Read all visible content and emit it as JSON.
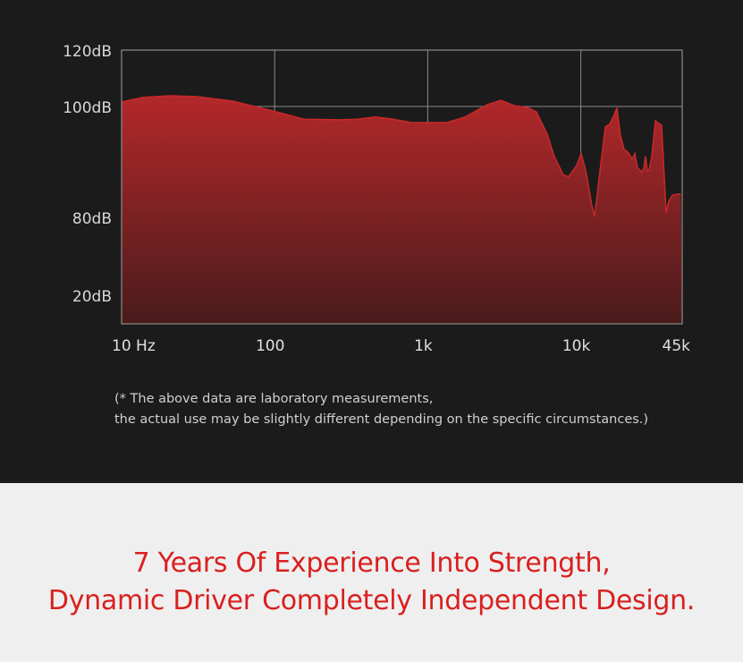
{
  "chart_data": {
    "type": "area",
    "xscale": "log",
    "x_ticks": [
      {
        "value": 10,
        "label": "10 Hz"
      },
      {
        "value": 100,
        "label": "100"
      },
      {
        "value": 1000,
        "label": "1k"
      },
      {
        "value": 10000,
        "label": "10k"
      },
      {
        "value": 45000,
        "label": "45k"
      }
    ],
    "y_ticks": [
      {
        "value": 120,
        "label": "120dB"
      },
      {
        "value": 100,
        "label": "100dB"
      },
      {
        "value": 80,
        "label": "80dB"
      },
      {
        "value": 20,
        "label": "20dB"
      }
    ],
    "xlim": [
      10,
      45000
    ],
    "ylim": [
      20,
      120
    ],
    "grid": true,
    "colors": {
      "fill_top": "#b3282a",
      "fill_bottom": "#4a1b1c",
      "line": "#c8292a",
      "grid": "#8a8a8a"
    },
    "x": [
      10,
      13.8,
      20.7,
      31,
      53,
      91,
      156,
      266,
      348,
      456,
      597,
      781,
      1336,
      1750,
      2450,
      3000,
      3670,
      4490,
      5130,
      6030,
      6710,
      7680,
      8330,
      9400,
      10050,
      10760,
      11810,
      12300,
      13150,
      14450,
      15450,
      16320,
      17220,
      18170,
      19180,
      20510,
      21640,
      22530,
      23460,
      25100,
      25780,
      26480,
      27210,
      27950,
      29110,
      30700,
      33730,
      34670,
      36070,
      37570,
      39660,
      42960,
      45000
    ],
    "y": [
      101.6,
      103.2,
      103.8,
      103.5,
      101.9,
      99.4,
      97.7,
      97.6,
      97.7,
      98.1,
      97.7,
      97.1,
      97.1,
      98.1,
      100.6,
      102.2,
      100.3,
      99.8,
      99.0,
      95.0,
      91.0,
      87.7,
      87.3,
      89.4,
      91.5,
      88.5,
      82.1,
      80.2,
      86.9,
      96.3,
      96.8,
      98.2,
      99.7,
      94.7,
      92.3,
      91.6,
      90.5,
      91.5,
      88.9,
      88.2,
      88.9,
      91.0,
      88.4,
      88.5,
      91.0,
      97.4,
      96.6,
      90.2,
      80.8,
      82.9,
      84.0,
      84.2,
      84.2
    ]
  },
  "note": {
    "line1": "(* The above data are laboratory measurements,",
    "line2": "the actual use may be slightly different depending on the specific circumstances.)"
  },
  "headline": {
    "line1": "7 Years Of Experience Into Strength,",
    "line2": "Dynamic Driver Completely Independent Design."
  }
}
